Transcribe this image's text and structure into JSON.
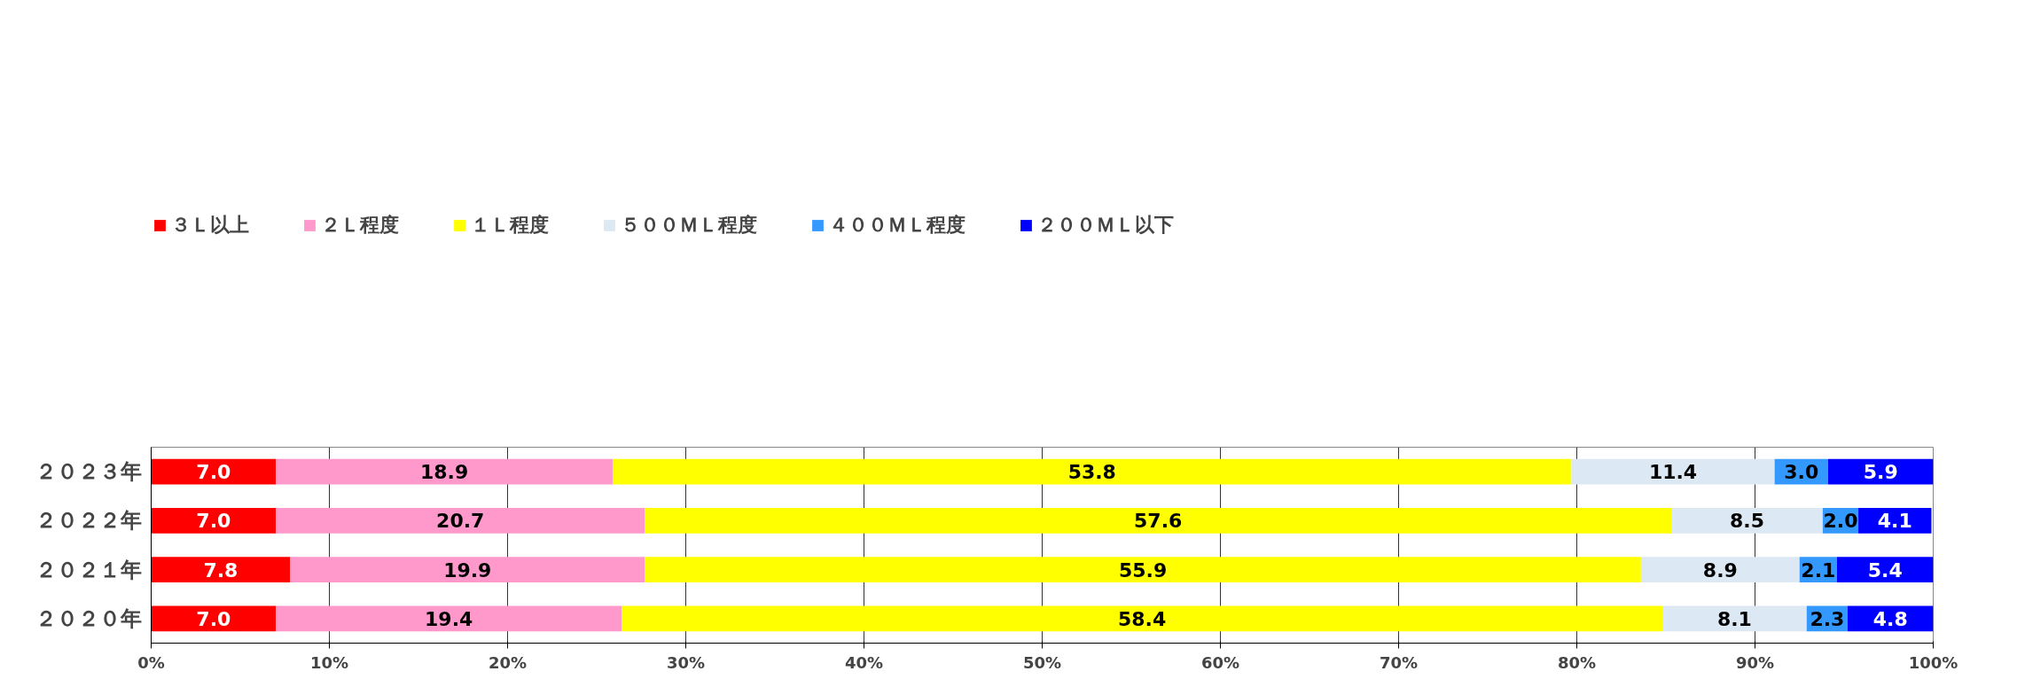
{
  "chart_data": {
    "type": "bar",
    "orientation": "horizontal",
    "stacked": true,
    "categories": [
      "２０２３年",
      "２０２２年",
      "２０２１年",
      "２０２０年"
    ],
    "series": [
      {
        "name": "３Ｌ以上",
        "color": "#ff0000",
        "values": [
          7.0,
          7.0,
          7.8,
          7.0
        ],
        "value_labels": [
          "7.0",
          "7.0",
          "7.8",
          "7.0"
        ]
      },
      {
        "name": "２Ｌ程度",
        "color": "#ff99cc",
        "values": [
          18.9,
          20.7,
          19.9,
          19.4
        ],
        "value_labels": [
          "18.9",
          "20.7",
          "19.9",
          "19.4"
        ]
      },
      {
        "name": "１Ｌ程度",
        "color": "#ffff00",
        "values": [
          53.8,
          57.6,
          55.9,
          58.4
        ],
        "value_labels": [
          "53.8",
          "57.6",
          "55.9",
          "58.4"
        ]
      },
      {
        "name": "５００ＭＬ程度",
        "color": "#dde8f5",
        "values": [
          11.4,
          8.5,
          8.9,
          8.1
        ],
        "value_labels": [
          "11.4",
          "8.5",
          "8.9",
          "8.1"
        ]
      },
      {
        "name": "４００ＭＬ程度",
        "color": "#3399ff",
        "values": [
          3.0,
          2.0,
          2.1,
          2.3
        ],
        "value_labels": [
          "3.0",
          "2.0",
          "2.1",
          "2.3"
        ]
      },
      {
        "name": "２００ＭＬ以下",
        "color": "#0000ff",
        "values": [
          5.9,
          4.1,
          5.4,
          4.8
        ],
        "value_labels": [
          "5.9",
          "4.1",
          "5.4",
          "4.8"
        ]
      }
    ],
    "xlim": [
      0,
      100
    ],
    "xticks": [
      {
        "value": 0,
        "label": "0%"
      },
      {
        "value": 10,
        "label": "10%"
      },
      {
        "value": 20,
        "label": "20%"
      },
      {
        "value": 30,
        "label": "30%"
      },
      {
        "value": 40,
        "label": "40%"
      },
      {
        "value": 50,
        "label": "50%"
      },
      {
        "value": 60,
        "label": "60%"
      },
      {
        "value": 70,
        "label": "70%"
      },
      {
        "value": 80,
        "label": "80%"
      },
      {
        "value": 90,
        "label": "90%"
      },
      {
        "value": 100,
        "label": "100%"
      }
    ],
    "grid": "x",
    "legend": "top",
    "data_labels": true
  }
}
